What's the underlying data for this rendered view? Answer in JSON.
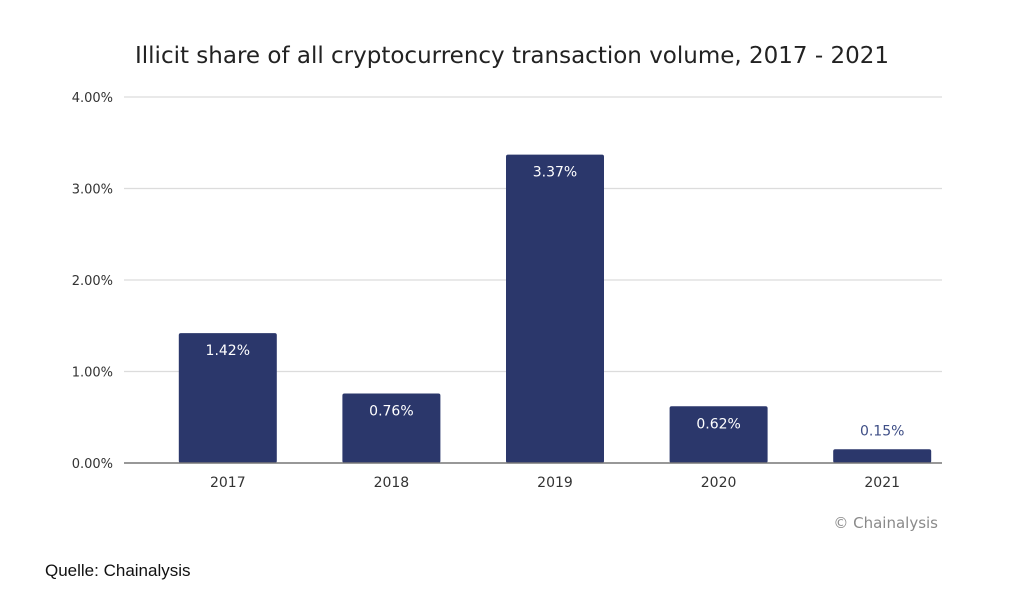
{
  "chart_data": {
    "type": "bar",
    "title": "Illicit share of all cryptocurrency transaction volume, 2017 - 2021",
    "categories": [
      "2017",
      "2018",
      "2019",
      "2020",
      "2021"
    ],
    "values": [
      1.42,
      0.76,
      3.37,
      0.62,
      0.15
    ],
    "value_labels": [
      "1.42%",
      "0.76%",
      "3.37%",
      "0.62%",
      "0.15%"
    ],
    "xlabel": "",
    "ylabel": "",
    "ylim": [
      0,
      4
    ],
    "yticks": [
      0,
      1,
      2,
      3,
      4
    ],
    "ytick_labels": [
      "0.00%",
      "1.00%",
      "2.00%",
      "3.00%",
      "4.00%"
    ],
    "grid": true,
    "legend": "none",
    "bar_color": "#2b376b",
    "credit": "© Chainalysis"
  },
  "source": "Quelle: Chainalysis"
}
